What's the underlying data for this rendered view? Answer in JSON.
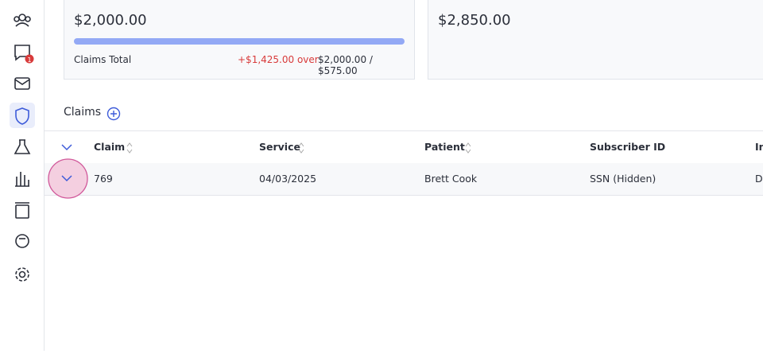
{
  "sidebar": {
    "badge": "1"
  },
  "cards": [
    {
      "amount": "$2,000.00",
      "label": "Claims Total",
      "over": "+$1,425.00 over",
      "ratio": "$2,000.00 / $575.00"
    },
    {
      "amount": "$2,850.00"
    }
  ],
  "claims": {
    "title": "Claims",
    "table": {
      "headers": [
        "Claim",
        "Service",
        "Patient",
        "Subscriber ID",
        "In"
      ],
      "rows": [
        [
          "769",
          "04/03/2025",
          "Brett Cook",
          "SSN (Hidden)",
          "D"
        ]
      ]
    }
  }
}
